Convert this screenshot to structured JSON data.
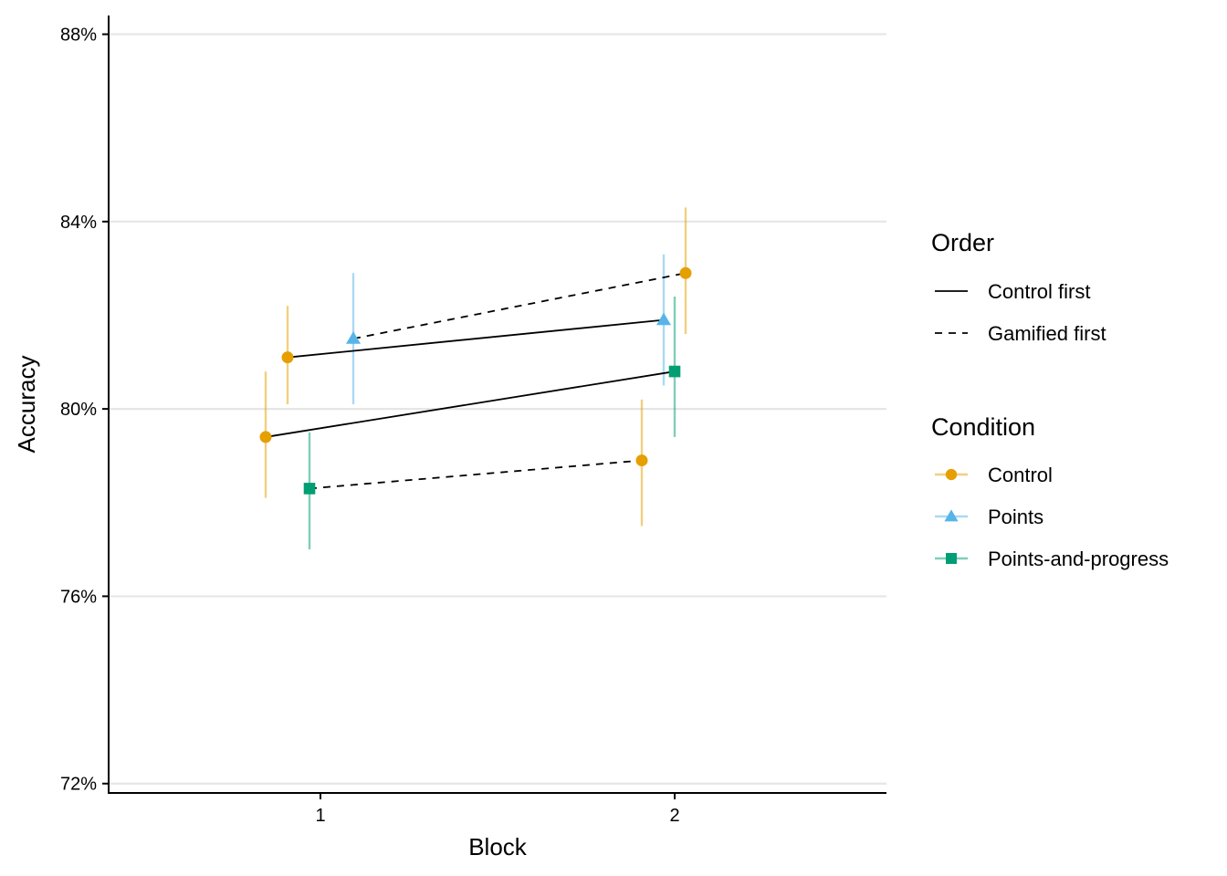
{
  "chart_data": {
    "type": "scatter",
    "xlabel": "Block",
    "ylabel": "Accuracy",
    "x_categories": [
      "1",
      "2"
    ],
    "ylim": [
      0.718,
      0.884
    ],
    "y_ticks": [
      0.72,
      0.76,
      0.8,
      0.84,
      0.88
    ],
    "y_tick_labels": [
      "72%",
      "76%",
      "80%",
      "84%",
      "88%"
    ],
    "grid": "horizontal major",
    "legend_position": "right",
    "condition_colors": {
      "Control": "#E69F00",
      "Points": "#56B4E9",
      "Points-and-progress": "#009E73"
    },
    "condition_shapes": {
      "Control": "circle",
      "Points": "triangle",
      "Points-and-progress": "square"
    },
    "orders": [
      {
        "name": "Control first",
        "linetype": "solid"
      },
      {
        "name": "Gamified first",
        "linetype": "dashed"
      }
    ],
    "conditions": [
      "Control",
      "Points",
      "Points-and-progress"
    ],
    "points": [
      {
        "order": "Control first",
        "condition": "Control",
        "block": 1,
        "mean": 0.811,
        "lower": 0.801,
        "upper": 0.822
      },
      {
        "order": "Control first",
        "condition": "Points",
        "block": 2,
        "mean": 0.819,
        "lower": 0.805,
        "upper": 0.833
      },
      {
        "order": "Control first",
        "condition": "Control",
        "block": 1,
        "mean": 0.794,
        "lower": 0.781,
        "upper": 0.808
      },
      {
        "order": "Control first",
        "condition": "Points-and-progress",
        "block": 2,
        "mean": 0.808,
        "lower": 0.794,
        "upper": 0.824
      },
      {
        "order": "Gamified first",
        "condition": "Points",
        "block": 1,
        "mean": 0.815,
        "lower": 0.801,
        "upper": 0.829
      },
      {
        "order": "Gamified first",
        "condition": "Control",
        "block": 2,
        "mean": 0.829,
        "lower": 0.816,
        "upper": 0.843
      },
      {
        "order": "Gamified first",
        "condition": "Points-and-progress",
        "block": 1,
        "mean": 0.783,
        "lower": 0.77,
        "upper": 0.795
      },
      {
        "order": "Gamified first",
        "condition": "Control",
        "block": 2,
        "mean": 0.789,
        "lower": 0.775,
        "upper": 0.802
      }
    ],
    "lines": [
      {
        "order": "Control first",
        "from": 0,
        "to": 1
      },
      {
        "order": "Control first",
        "from": 2,
        "to": 3
      },
      {
        "order": "Gamified first",
        "from": 4,
        "to": 5
      },
      {
        "order": "Gamified first",
        "from": 6,
        "to": 7
      }
    ],
    "legend": {
      "order_title": "Order",
      "condition_title": "Condition"
    }
  }
}
